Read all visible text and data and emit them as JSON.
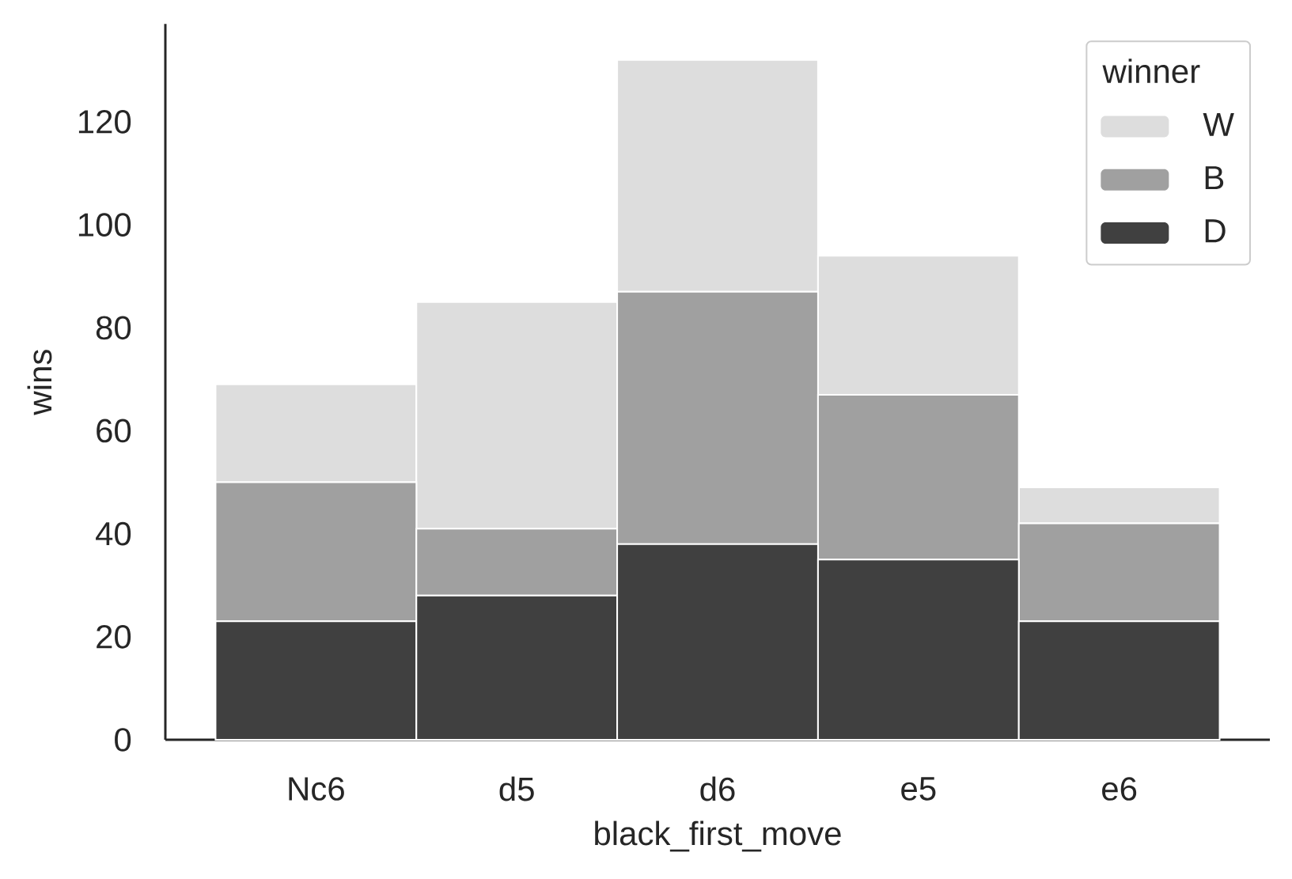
{
  "chart_data": {
    "type": "bar",
    "stacked": true,
    "xlabel": "black_first_move",
    "ylabel": "wins",
    "legend_title": "winner",
    "legend": "top right",
    "categories": [
      "Nc6",
      "d5",
      "d6",
      "e5",
      "e6"
    ],
    "series": [
      {
        "name": "D",
        "color": "#404040",
        "values": [
          23,
          28,
          38,
          35,
          23
        ]
      },
      {
        "name": "B",
        "color": "#a0a0a0",
        "values": [
          27,
          13,
          49,
          32,
          19
        ]
      },
      {
        "name": "W",
        "color": "#dddddd",
        "values": [
          19,
          44,
          45,
          27,
          7
        ]
      }
    ],
    "ylim": [
      0,
      139
    ],
    "yticks": [
      0,
      20,
      40,
      60,
      80,
      100,
      120
    ],
    "grid": false
  }
}
